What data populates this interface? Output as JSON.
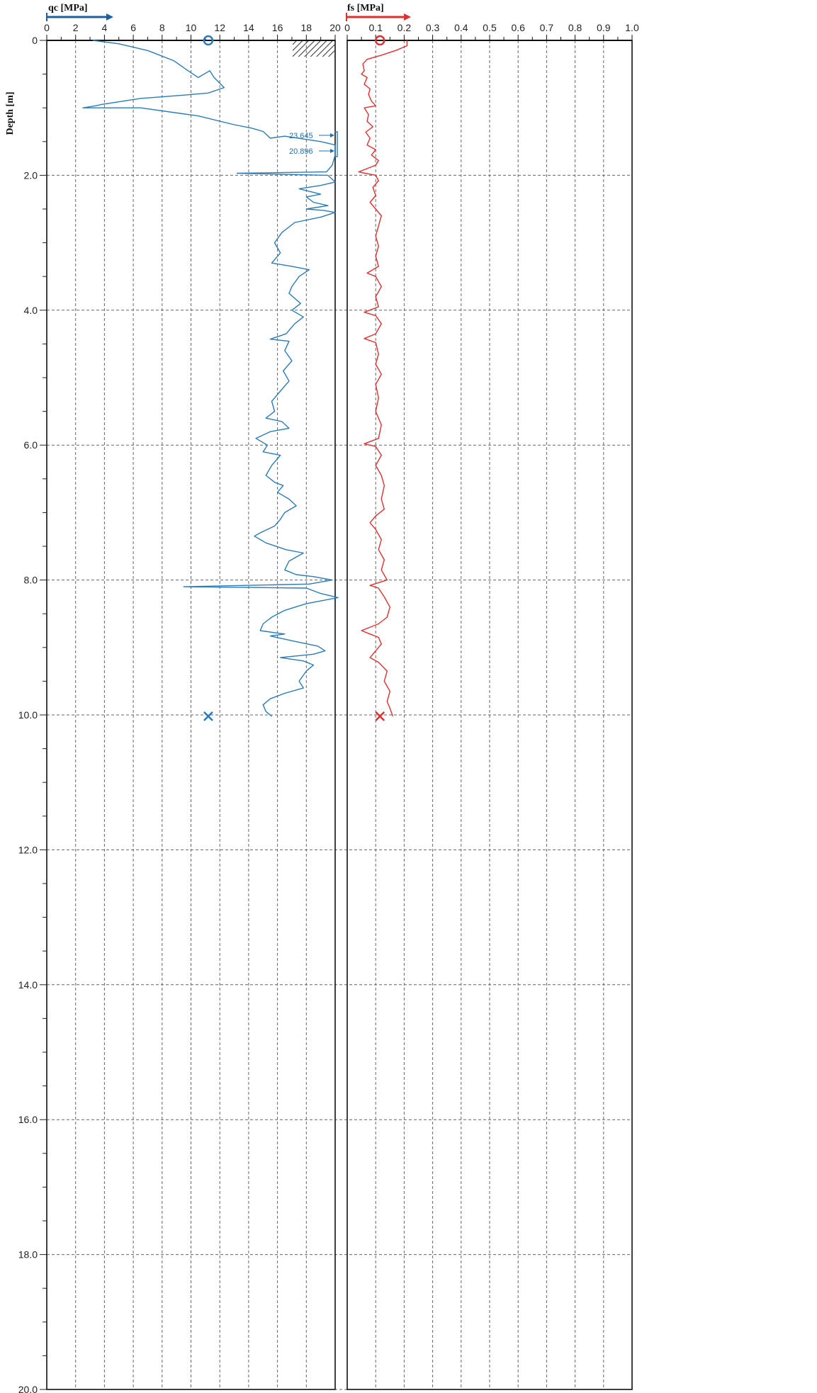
{
  "chart_data": [
    {
      "type": "line",
      "title": "qc [MPa]",
      "ylabel": "Depth [m]",
      "xlim": [
        0,
        20
      ],
      "ylim": [
        0,
        20
      ],
      "x_ticks": [
        "0",
        "2",
        "4",
        "6",
        "8",
        "10",
        "12",
        "14",
        "16",
        "18",
        "20"
      ],
      "y_ticks": [
        "0",
        "2.0",
        "4.0",
        "6.0",
        "8.0",
        "10.0",
        "12.0",
        "14.0",
        "16.0",
        "18.0",
        "20.0"
      ],
      "color": "#2b7bb9",
      "series": [
        {
          "points": [
            [
              3.2,
              0.0
            ],
            [
              5.0,
              0.05
            ],
            [
              7.0,
              0.15
            ],
            [
              8.8,
              0.3
            ],
            [
              9.8,
              0.45
            ],
            [
              10.5,
              0.55
            ],
            [
              11.3,
              0.45
            ],
            [
              11.6,
              0.55
            ],
            [
              12.3,
              0.7
            ],
            [
              11.2,
              0.78
            ],
            [
              9.0,
              0.82
            ],
            [
              6.5,
              0.86
            ],
            [
              3.8,
              0.95
            ],
            [
              3.4,
              0.97
            ],
            [
              2.5,
              1.0
            ],
            [
              6.5,
              1.0
            ],
            [
              10.5,
              1.12
            ],
            [
              13.0,
              1.25
            ],
            [
              14.2,
              1.3
            ],
            [
              15.0,
              1.35
            ],
            [
              15.5,
              1.45
            ],
            [
              16.5,
              1.42
            ],
            [
              19.0,
              1.5
            ],
            [
              20.0,
              1.55
            ],
            [
              20.0,
              1.7
            ],
            [
              19.8,
              1.85
            ],
            [
              19.4,
              1.95
            ],
            [
              13.2,
              1.97
            ],
            [
              19.5,
              2.0
            ],
            [
              20.0,
              2.1
            ],
            [
              19.0,
              2.15
            ],
            [
              17.5,
              2.2
            ],
            [
              19.0,
              2.28
            ],
            [
              18.0,
              2.32
            ],
            [
              18.5,
              2.4
            ],
            [
              19.5,
              2.45
            ],
            [
              18.0,
              2.5
            ],
            [
              19.2,
              2.52
            ],
            [
              20.0,
              2.55
            ],
            [
              19.0,
              2.62
            ],
            [
              17.2,
              2.7
            ],
            [
              16.3,
              2.85
            ],
            [
              15.8,
              3.0
            ],
            [
              16.2,
              3.15
            ],
            [
              15.6,
              3.3
            ],
            [
              17.0,
              3.35
            ],
            [
              18.2,
              3.4
            ],
            [
              17.5,
              3.5
            ],
            [
              17.0,
              3.65
            ],
            [
              16.8,
              3.75
            ],
            [
              17.6,
              3.9
            ],
            [
              17.0,
              4.0
            ],
            [
              17.8,
              4.1
            ],
            [
              17.2,
              4.2
            ],
            [
              16.6,
              4.35
            ],
            [
              15.5,
              4.43
            ],
            [
              16.8,
              4.46
            ],
            [
              16.5,
              4.6
            ],
            [
              17.0,
              4.75
            ],
            [
              16.4,
              4.9
            ],
            [
              16.8,
              5.05
            ],
            [
              16.2,
              5.2
            ],
            [
              15.6,
              5.35
            ],
            [
              15.8,
              5.5
            ],
            [
              15.2,
              5.6
            ],
            [
              16.3,
              5.65
            ],
            [
              16.8,
              5.75
            ],
            [
              15.5,
              5.8
            ],
            [
              14.5,
              5.9
            ],
            [
              15.3,
              6.0
            ],
            [
              15.0,
              6.1
            ],
            [
              16.2,
              6.15
            ],
            [
              15.6,
              6.3
            ],
            [
              15.2,
              6.45
            ],
            [
              15.8,
              6.55
            ],
            [
              16.4,
              6.6
            ],
            [
              16.0,
              6.7
            ],
            [
              16.8,
              6.8
            ],
            [
              17.3,
              6.9
            ],
            [
              16.5,
              7.0
            ],
            [
              16.2,
              7.1
            ],
            [
              15.8,
              7.2
            ],
            [
              14.8,
              7.3
            ],
            [
              14.4,
              7.35
            ],
            [
              15.2,
              7.45
            ],
            [
              16.6,
              7.55
            ],
            [
              17.8,
              7.6
            ],
            [
              16.8,
              7.72
            ],
            [
              16.5,
              7.85
            ],
            [
              17.3,
              7.92
            ],
            [
              18.5,
              7.95
            ],
            [
              19.8,
              8.0
            ],
            [
              18.2,
              8.06
            ],
            [
              9.5,
              8.1
            ],
            [
              18.0,
              8.12
            ],
            [
              19.0,
              8.2
            ],
            [
              20.3,
              8.26
            ],
            [
              18.0,
              8.35
            ],
            [
              16.5,
              8.45
            ],
            [
              15.6,
              8.55
            ],
            [
              15.0,
              8.65
            ],
            [
              14.8,
              8.75
            ],
            [
              15.8,
              8.78
            ],
            [
              16.5,
              8.8
            ],
            [
              15.5,
              8.83
            ],
            [
              17.0,
              8.9
            ],
            [
              18.8,
              8.98
            ],
            [
              19.3,
              9.05
            ],
            [
              18.5,
              9.1
            ],
            [
              16.2,
              9.15
            ],
            [
              17.8,
              9.2
            ],
            [
              18.5,
              9.26
            ],
            [
              18.0,
              9.35
            ],
            [
              17.5,
              9.5
            ],
            [
              17.8,
              9.6
            ],
            [
              16.5,
              9.68
            ],
            [
              15.5,
              9.76
            ],
            [
              15.0,
              9.85
            ],
            [
              15.2,
              9.95
            ],
            [
              15.6,
              10.02
            ]
          ]
        }
      ],
      "annotations": [
        "23.645",
        "20.896"
      ],
      "markers": [
        {
          "shape": "circle",
          "x": 11.2,
          "y": 0.0
        },
        {
          "shape": "cross",
          "x": 11.2,
          "y": 10.02
        }
      ]
    },
    {
      "type": "line",
      "title": "fs [MPa]",
      "xlim": [
        0,
        1.0
      ],
      "ylim": [
        0,
        20
      ],
      "x_ticks": [
        "0",
        "0.1",
        "0.2",
        "0.3",
        "0.4",
        "0.5",
        "0.6",
        "0.7",
        "0.8",
        "0.9",
        "1.0"
      ],
      "color": "#e03030",
      "series": [
        {
          "points": [
            [
              0.21,
              0.0
            ],
            [
              0.21,
              0.08
            ],
            [
              0.17,
              0.15
            ],
            [
              0.12,
              0.22
            ],
            [
              0.07,
              0.28
            ],
            [
              0.055,
              0.35
            ],
            [
              0.06,
              0.45
            ],
            [
              0.05,
              0.5
            ],
            [
              0.07,
              0.55
            ],
            [
              0.06,
              0.65
            ],
            [
              0.08,
              0.72
            ],
            [
              0.075,
              0.8
            ],
            [
              0.085,
              0.9
            ],
            [
              0.1,
              0.97
            ],
            [
              0.06,
              1.0
            ],
            [
              0.075,
              1.1
            ],
            [
              0.07,
              1.2
            ],
            [
              0.09,
              1.28
            ],
            [
              0.065,
              1.36
            ],
            [
              0.08,
              1.45
            ],
            [
              0.07,
              1.55
            ],
            [
              0.1,
              1.62
            ],
            [
              0.085,
              1.7
            ],
            [
              0.11,
              1.78
            ],
            [
              0.1,
              1.85
            ],
            [
              0.04,
              1.95
            ],
            [
              0.1,
              2.0
            ],
            [
              0.11,
              2.08
            ],
            [
              0.09,
              2.18
            ],
            [
              0.1,
              2.3
            ],
            [
              0.08,
              2.4
            ],
            [
              0.1,
              2.5
            ],
            [
              0.12,
              2.6
            ],
            [
              0.11,
              2.75
            ],
            [
              0.1,
              2.9
            ],
            [
              0.11,
              3.05
            ],
            [
              0.1,
              3.2
            ],
            [
              0.11,
              3.35
            ],
            [
              0.07,
              3.45
            ],
            [
              0.1,
              3.5
            ],
            [
              0.12,
              3.65
            ],
            [
              0.1,
              3.8
            ],
            [
              0.11,
              3.95
            ],
            [
              0.06,
              4.03
            ],
            [
              0.1,
              4.08
            ],
            [
              0.12,
              4.2
            ],
            [
              0.1,
              4.35
            ],
            [
              0.06,
              4.42
            ],
            [
              0.1,
              4.48
            ],
            [
              0.11,
              4.65
            ],
            [
              0.1,
              4.8
            ],
            [
              0.12,
              4.95
            ],
            [
              0.1,
              5.1
            ],
            [
              0.11,
              5.3
            ],
            [
              0.1,
              5.5
            ],
            [
              0.12,
              5.7
            ],
            [
              0.11,
              5.9
            ],
            [
              0.06,
              5.98
            ],
            [
              0.1,
              6.02
            ],
            [
              0.12,
              6.15
            ],
            [
              0.1,
              6.3
            ],
            [
              0.12,
              6.45
            ],
            [
              0.13,
              6.6
            ],
            [
              0.12,
              6.8
            ],
            [
              0.13,
              6.95
            ],
            [
              0.1,
              7.05
            ],
            [
              0.08,
              7.15
            ],
            [
              0.1,
              7.25
            ],
            [
              0.12,
              7.4
            ],
            [
              0.11,
              7.55
            ],
            [
              0.13,
              7.7
            ],
            [
              0.12,
              7.85
            ],
            [
              0.14,
              8.0
            ],
            [
              0.08,
              8.08
            ],
            [
              0.11,
              8.12
            ],
            [
              0.13,
              8.25
            ],
            [
              0.15,
              8.4
            ],
            [
              0.14,
              8.55
            ],
            [
              0.11,
              8.65
            ],
            [
              0.05,
              8.75
            ],
            [
              0.08,
              8.8
            ],
            [
              0.11,
              8.85
            ],
            [
              0.12,
              8.95
            ],
            [
              0.1,
              9.05
            ],
            [
              0.08,
              9.15
            ],
            [
              0.11,
              9.22
            ],
            [
              0.14,
              9.35
            ],
            [
              0.13,
              9.5
            ],
            [
              0.15,
              9.65
            ],
            [
              0.14,
              9.8
            ],
            [
              0.15,
              9.9
            ],
            [
              0.16,
              10.02
            ]
          ]
        }
      ],
      "markers": [
        {
          "shape": "circle",
          "x": 0.115,
          "y": 0.0
        },
        {
          "shape": "cross",
          "x": 0.115,
          "y": 10.02
        }
      ]
    }
  ]
}
